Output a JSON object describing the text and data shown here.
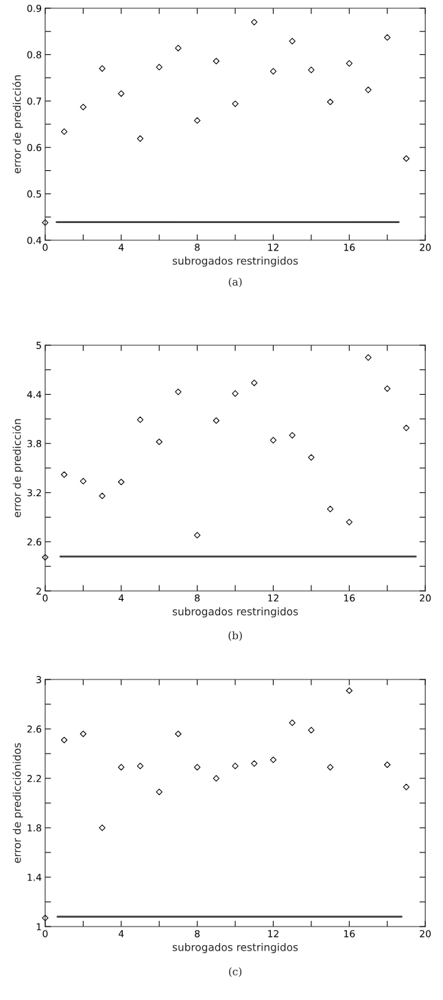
{
  "chart_data": [
    {
      "type": "scatter",
      "title": "(a)",
      "xlabel": "subrogados restringidos",
      "ylabel": "error de predicción",
      "grid": false,
      "legend": false,
      "xlim": [
        0,
        20
      ],
      "xticks": [
        0,
        {
          "value": 2,
          "label": null
        },
        4,
        {
          "value": 6,
          "label": null
        },
        8,
        {
          "value": 10,
          "label": null
        },
        12,
        {
          "value": 14,
          "label": null
        },
        16,
        {
          "value": 18,
          "label": null
        },
        20
      ],
      "ylim": [
        0.4,
        0.9
      ],
      "yticks": [
        0.4,
        {
          "value": 0.45,
          "label": null
        },
        0.5,
        {
          "value": 0.55,
          "label": null
        },
        0.6,
        {
          "value": 0.65,
          "label": null
        },
        0.7,
        {
          "value": 0.75,
          "label": null
        },
        0.8,
        {
          "value": 0.85,
          "label": null
        },
        0.9
      ],
      "series": [
        {
          "marker": "diamond",
          "color": "#000000",
          "x": [
            0,
            1,
            2,
            3,
            4,
            5,
            6,
            7,
            8,
            9,
            10,
            11,
            12,
            13,
            14,
            15,
            16,
            17,
            18,
            19
          ],
          "values": [
            0.438,
            0.634,
            0.687,
            0.77,
            0.716,
            0.619,
            0.773,
            0.814,
            0.658,
            0.786,
            0.694,
            0.87,
            0.764,
            0.829,
            0.767,
            0.698,
            0.781,
            0.724,
            0.837,
            0.576
          ]
        },
        {
          "type": "line",
          "color": "#404040",
          "x": [
            0.6,
            18.6
          ],
          "values": [
            0.439,
            0.439
          ]
        }
      ]
    },
    {
      "type": "scatter",
      "title": "(b)",
      "xlabel": "subrogados restringidos",
      "ylabel": "error de predicción",
      "grid": false,
      "legend": false,
      "xlim": [
        0,
        20
      ],
      "xticks": [
        0,
        {
          "value": 2,
          "label": null
        },
        4,
        {
          "value": 6,
          "label": null
        },
        8,
        {
          "value": 10,
          "label": null
        },
        12,
        {
          "value": 14,
          "label": null
        },
        16,
        {
          "value": 18,
          "label": null
        },
        20
      ],
      "ylim": [
        2,
        5
      ],
      "yticks": [
        2,
        {
          "value": 2.3,
          "label": null
        },
        2.6,
        {
          "value": 2.9,
          "label": null
        },
        3.2,
        {
          "value": 3.5,
          "label": null
        },
        3.8,
        {
          "value": 4.1,
          "label": null
        },
        4.4,
        {
          "value": 4.7,
          "label": null
        },
        5
      ],
      "series": [
        {
          "marker": "diamond",
          "color": "#000000",
          "x": [
            0,
            1,
            2,
            3,
            4,
            5,
            6,
            7,
            8,
            9,
            10,
            11,
            12,
            13,
            14,
            15,
            16,
            17,
            18,
            19
          ],
          "values": [
            2.41,
            3.42,
            3.34,
            3.16,
            3.33,
            4.09,
            3.82,
            4.43,
            2.68,
            4.08,
            4.41,
            4.54,
            3.84,
            3.9,
            3.63,
            3.0,
            2.84,
            4.85,
            4.47,
            3.99
          ]
        },
        {
          "type": "line",
          "color": "#404040",
          "x": [
            0.8,
            19.5
          ],
          "values": [
            2.42,
            2.42
          ]
        }
      ]
    },
    {
      "type": "scatter",
      "title": "(c)",
      "xlabel": "subrogados restringidos",
      "ylabel": "error de predicciónidos",
      "grid": false,
      "legend": false,
      "xlim": [
        0,
        20
      ],
      "xticks": [
        0,
        {
          "value": 2,
          "label": null
        },
        4,
        {
          "value": 6,
          "label": null
        },
        8,
        {
          "value": 10,
          "label": null
        },
        12,
        {
          "value": 14,
          "label": null
        },
        16,
        {
          "value": 18,
          "label": null
        },
        20
      ],
      "ylim": [
        1,
        3
      ],
      "yticks": [
        1,
        {
          "value": 1.2,
          "label": null
        },
        1.4,
        {
          "value": 1.6,
          "label": null
        },
        1.8,
        {
          "value": 2.0,
          "label": null
        },
        2.2,
        {
          "value": 2.4,
          "label": null
        },
        2.6,
        {
          "value": 2.8,
          "label": null
        },
        3
      ],
      "series": [
        {
          "marker": "diamond",
          "color": "#000000",
          "x": [
            0,
            1,
            2,
            3,
            4,
            5,
            6,
            7,
            8,
            9,
            10,
            11,
            12,
            13,
            14,
            15,
            16,
            17,
            18,
            19
          ],
          "values": [
            1.07,
            2.51,
            2.56,
            1.8,
            2.29,
            2.3,
            2.09,
            2.56,
            2.29,
            2.2,
            2.3,
            2.32,
            2.35,
            2.65,
            2.59,
            2.29,
            2.91,
            null,
            2.31,
            2.13
          ]
        },
        {
          "type": "line",
          "color": "#404040",
          "x": [
            0.65,
            18.75
          ],
          "values": [
            1.08,
            1.08
          ]
        }
      ]
    }
  ]
}
